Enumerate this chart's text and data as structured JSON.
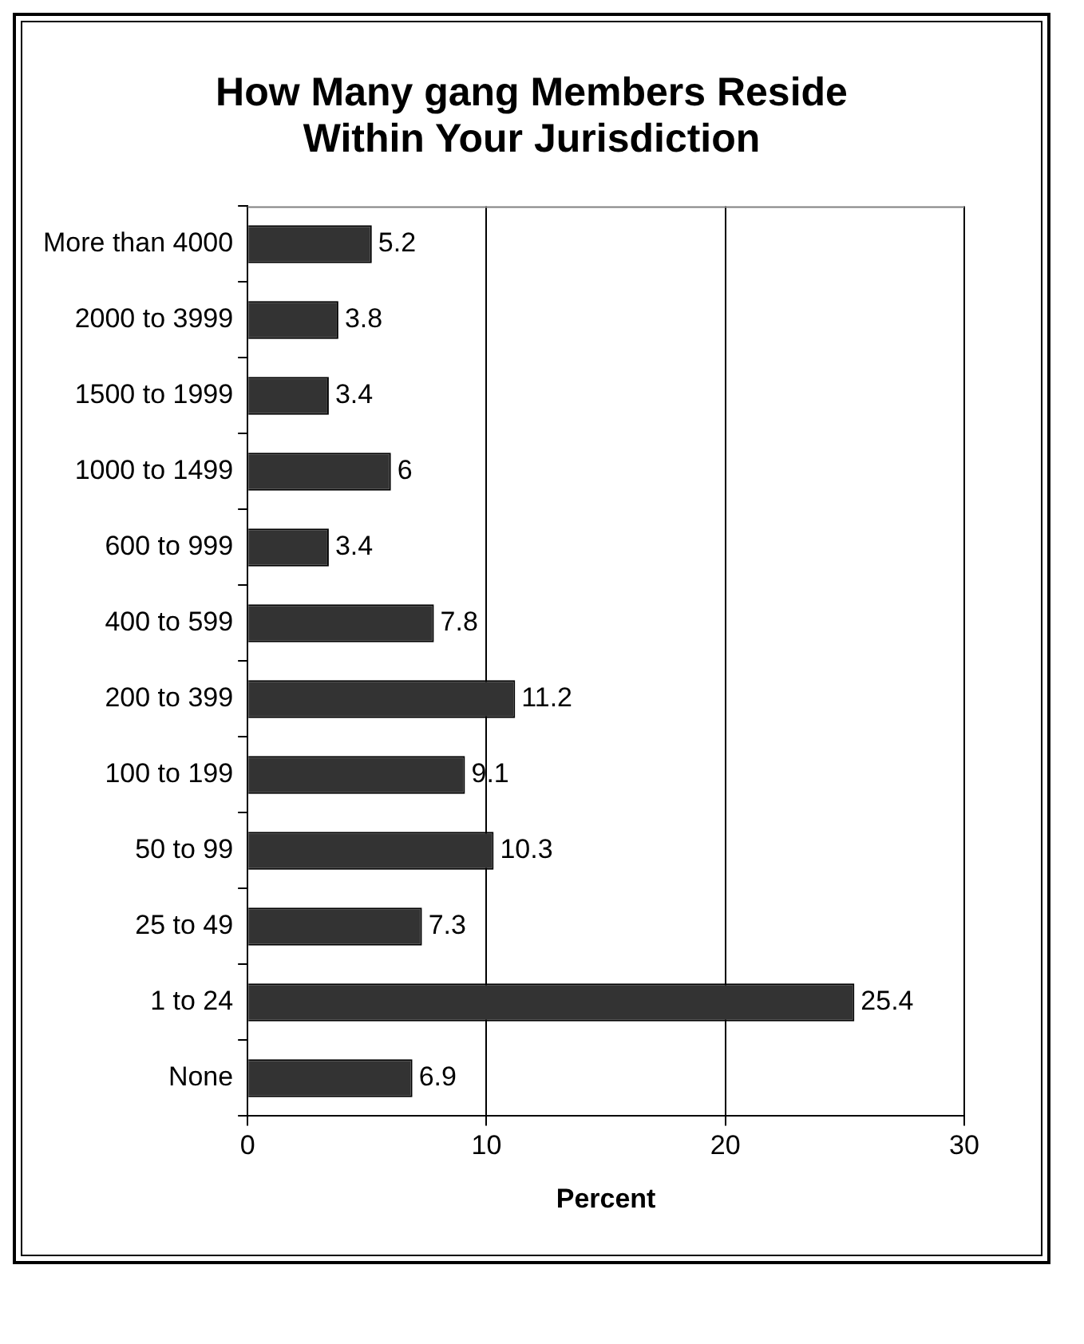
{
  "chart_data": {
    "type": "bar",
    "orientation": "horizontal",
    "title": "How Many gang Members Reside Within Your Jurisdiction",
    "xlabel": "Percent",
    "categories": [
      "More than 4000",
      "2000 to 3999",
      "1500 to 1999",
      "1000 to 1499",
      "600 to 999",
      "400 to 599",
      "200 to 399",
      "100 to 199",
      "50 to 99",
      "25 to 49",
      "1 to 24",
      "None"
    ],
    "values": [
      5.2,
      3.8,
      3.4,
      6,
      3.4,
      7.8,
      11.2,
      9.1,
      10.3,
      7.3,
      25.4,
      6.9
    ],
    "color": "#333333",
    "xlim": [
      0,
      30
    ],
    "xticks": [
      0,
      10,
      20,
      30
    ],
    "grid": "x",
    "data_labels": true,
    "legend": false
  }
}
